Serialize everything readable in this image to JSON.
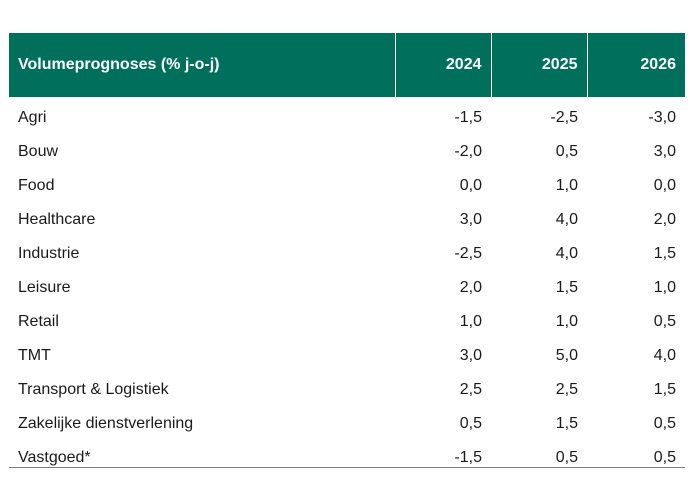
{
  "table": {
    "header": {
      "label": "Volumeprognoses (% j-o-j)",
      "years": [
        "2024",
        "2025",
        "2026"
      ]
    },
    "rows": [
      {
        "sector": "Agri",
        "values": [
          "-1,5",
          "-2,5",
          "-3,0"
        ]
      },
      {
        "sector": "Bouw",
        "values": [
          "-2,0",
          "0,5",
          "3,0"
        ]
      },
      {
        "sector": "Food",
        "values": [
          "0,0",
          "1,0",
          "0,0"
        ]
      },
      {
        "sector": "Healthcare",
        "values": [
          "3,0",
          "4,0",
          "2,0"
        ]
      },
      {
        "sector": "Industrie",
        "values": [
          "-2,5",
          "4,0",
          "1,5"
        ]
      },
      {
        "sector": "Leisure",
        "values": [
          "2,0",
          "1,5",
          "1,0"
        ]
      },
      {
        "sector": "Retail",
        "values": [
          "1,0",
          "1,0",
          "0,5"
        ]
      },
      {
        "sector": "TMT",
        "values": [
          "3,0",
          "5,0",
          "4,0"
        ]
      },
      {
        "sector": "Transport & Logistiek",
        "values": [
          "2,5",
          "2,5",
          "1,5"
        ]
      },
      {
        "sector": "Zakelijke dienstverlening",
        "values": [
          "0,5",
          "1,5",
          "0,5"
        ]
      },
      {
        "sector": "Vastgoed*",
        "values": [
          "-1,5",
          "0,5",
          "0,5"
        ]
      }
    ],
    "colors": {
      "header_bg": "#00705c",
      "header_text": "#ffffff",
      "rule": "#808080"
    }
  }
}
